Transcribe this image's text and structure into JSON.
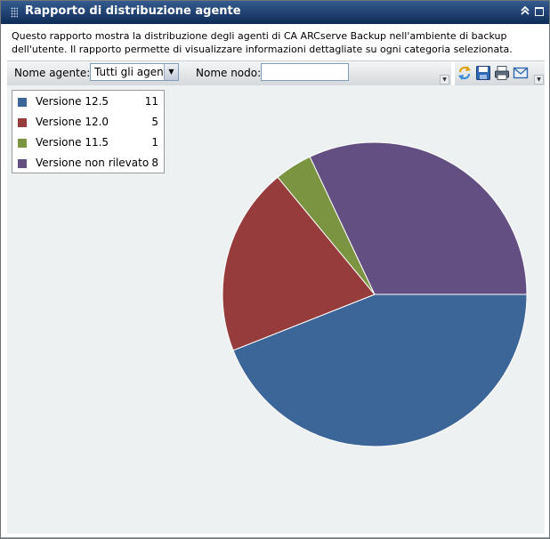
{
  "window": {
    "title": "Rapporto di distribuzione agente",
    "collapse_icon": "double-chevron-up-icon",
    "restore_icon": "maximize-icon"
  },
  "description": "Questo rapporto mostra la distribuzione degli agenti di CA ARCserve Backup nell'ambiente di backup dell'utente. Il rapporto permette di visualizzare informazioni dettagliate su ogni categoria selezionata.",
  "filters": {
    "agent_label": "Nome agente:",
    "agent_selected": "Tutti gli agenti",
    "node_label": "Nome nodo:",
    "node_value": ""
  },
  "actions": {
    "refresh_icon": "refresh-icon",
    "save_icon": "save-icon",
    "print_icon": "print-icon",
    "email_icon": "email-icon"
  },
  "legend": {
    "items": [
      {
        "label": "Versione 12.5",
        "count": "11",
        "color": "#3c6698"
      },
      {
        "label": "Versione 12.0",
        "count": "5",
        "color": "#963c3c"
      },
      {
        "label": "Versione 11.5",
        "count": "1",
        "color": "#7b9442"
      },
      {
        "label": "Versione non rilevato",
        "count": "8",
        "color": "#634f81"
      }
    ]
  },
  "chart_data": {
    "type": "pie",
    "categories": [
      "Versione 12.5",
      "Versione 12.0",
      "Versione 11.5",
      "Versione non rilevato"
    ],
    "values": [
      11,
      5,
      1,
      8
    ],
    "colors": [
      "#3c6698",
      "#963c3c",
      "#7b9442",
      "#634f81"
    ],
    "start_angle_deg": 0,
    "direction": "clockwise",
    "legend_position": "top-left"
  }
}
